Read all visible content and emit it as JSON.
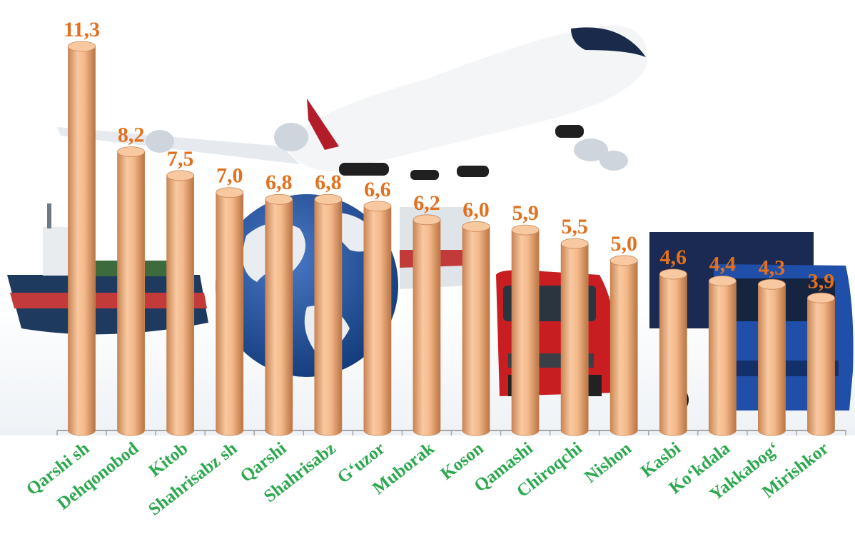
{
  "chart_data": {
    "type": "bar",
    "categories": [
      "Qarshi sh",
      "Dehqonobod",
      "Kitob",
      "Shahrisabz sh",
      "Qarshi",
      "Shahrisabz",
      "G‘uzor",
      "Muborak",
      "Koson",
      "Qamashi",
      "Chiroqchi",
      "Nishon",
      "Kasbi",
      "Ko‘kdala",
      "Yakkabog‘",
      "Mirishkor"
    ],
    "values": [
      11.3,
      8.2,
      7.5,
      7.0,
      6.8,
      6.8,
      6.6,
      6.2,
      6.0,
      5.9,
      5.5,
      5.0,
      4.6,
      4.4,
      4.3,
      3.9
    ],
    "value_labels": [
      "11,3",
      "8,2",
      "7,5",
      "7,0",
      "6,8",
      "6,8",
      "6,6",
      "6,2",
      "6,0",
      "5,9",
      "5,5",
      "5,0",
      "4,6",
      "4,4",
      "4,3",
      "3,9"
    ],
    "title": "",
    "xlabel": "",
    "ylabel": "",
    "ylim": [
      0,
      11.3
    ],
    "grid": false,
    "legend": "none",
    "bar_style": "3d-cylinder",
    "colors": {
      "bar_fill": "#F4B98A",
      "bar_shade": "#C98554",
      "bar_top": "#F8C9A1",
      "value_label": "#E2701E",
      "category_label": "#2DA84F",
      "axis": "#A6A6A6"
    },
    "background_illustrations": [
      "cargo-ship-image",
      "airplane-image",
      "globe-image",
      "red-van-image",
      "blue-truck-image"
    ]
  }
}
